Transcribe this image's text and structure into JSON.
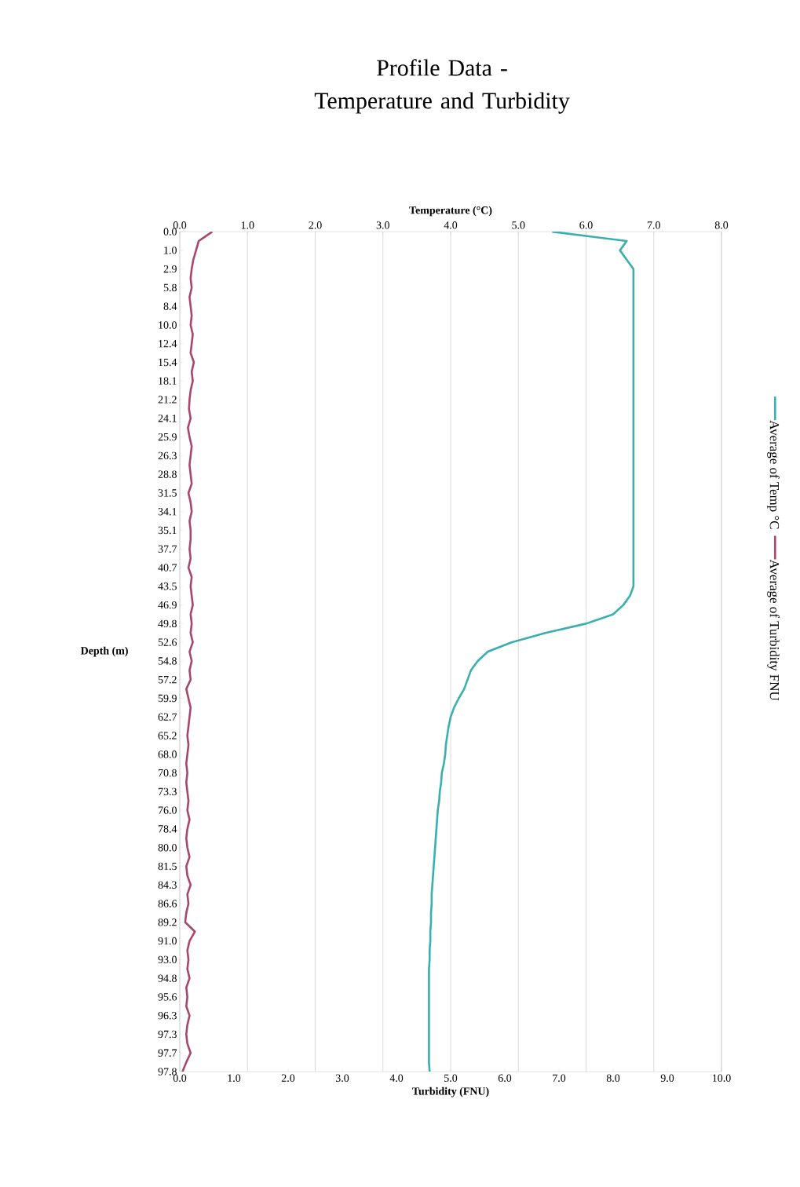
{
  "chart_data": {
    "type": "line",
    "orientation": "horizontal",
    "title": "Profile Data - Temperature and Turbidity",
    "xlabel": "Turbidity (FNU)",
    "x2label": "Temperature (°C)",
    "ylabel": "Depth (m)",
    "categories": [
      "0.0",
      null,
      "1.0",
      null,
      "2.9",
      null,
      "5.8",
      null,
      "8.4",
      null,
      "10.0",
      null,
      "12.4",
      null,
      "15.4",
      null,
      "18.1",
      null,
      "21.2",
      null,
      "24.1",
      null,
      "25.9",
      null,
      "26.3",
      null,
      "28.8",
      null,
      "31.5",
      null,
      "34.1",
      null,
      "35.1",
      null,
      "37.7",
      null,
      "40.7",
      null,
      "43.5",
      null,
      "46.9",
      null,
      "49.8",
      null,
      "52.6",
      null,
      "54.8",
      null,
      "57.2",
      null,
      "59.9",
      null,
      "62.7",
      null,
      "65.2",
      null,
      "68.0",
      null,
      "70.8",
      null,
      "73.3",
      null,
      "76.0",
      null,
      "78.4",
      null,
      "80.0",
      null,
      "81.5",
      null,
      "84.3",
      null,
      "86.6",
      null,
      "89.2",
      null,
      "91.0",
      null,
      "93.0",
      null,
      "94.8",
      null,
      "95.6",
      null,
      "96.3",
      null,
      "97.3",
      null,
      "97.7",
      null,
      "97.8"
    ],
    "series": [
      {
        "name": "Average of Temp °C",
        "color": "#3aafb0",
        "axis": "x2",
        "values": [
          5.5,
          6.6,
          6.5,
          6.6,
          6.7,
          6.7,
          6.7,
          6.7,
          6.7,
          6.7,
          6.7,
          6.7,
          6.7,
          6.7,
          6.7,
          6.7,
          6.7,
          6.7,
          6.7,
          6.7,
          6.7,
          6.7,
          6.7,
          6.7,
          6.7,
          6.7,
          6.7,
          6.7,
          6.7,
          6.7,
          6.7,
          6.7,
          6.7,
          6.7,
          6.7,
          6.7,
          6.7,
          6.7,
          6.7,
          6.65,
          6.55,
          6.4,
          6.0,
          5.4,
          4.9,
          4.55,
          4.4,
          4.3,
          4.25,
          4.2,
          4.12,
          4.05,
          4.0,
          3.97,
          3.95,
          3.93,
          3.92,
          3.9,
          3.87,
          3.86,
          3.84,
          3.83,
          3.81,
          3.8,
          3.79,
          3.78,
          3.77,
          3.76,
          3.75,
          3.74,
          3.73,
          3.72,
          3.72,
          3.71,
          3.71,
          3.7,
          3.7,
          3.69,
          3.69,
          3.68,
          3.68,
          3.68,
          3.68,
          3.68,
          3.68,
          3.68,
          3.68,
          3.68,
          3.68,
          3.68,
          3.69
        ]
      },
      {
        "name": "Average of Turbidity FNU",
        "color": "#a8476e",
        "values": [
          0.6,
          0.35,
          0.3,
          0.25,
          0.22,
          0.2,
          0.22,
          0.18,
          0.2,
          0.22,
          0.2,
          0.24,
          0.22,
          0.2,
          0.26,
          0.22,
          0.24,
          0.2,
          0.18,
          0.17,
          0.2,
          0.15,
          0.18,
          0.22,
          0.2,
          0.18,
          0.2,
          0.22,
          0.16,
          0.2,
          0.22,
          0.18,
          0.2,
          0.2,
          0.18,
          0.2,
          0.16,
          0.22,
          0.2,
          0.22,
          0.24,
          0.2,
          0.22,
          0.2,
          0.24,
          0.18,
          0.22,
          0.18,
          0.2,
          0.12,
          0.16,
          0.2,
          0.18,
          0.16,
          0.14,
          0.16,
          0.14,
          0.12,
          0.14,
          0.12,
          0.14,
          0.16,
          0.14,
          0.18,
          0.14,
          0.12,
          0.14,
          0.18,
          0.12,
          0.14,
          0.2,
          0.14,
          0.16,
          0.12,
          0.1,
          0.28,
          0.18,
          0.14,
          0.16,
          0.14,
          0.18,
          0.12,
          0.14,
          0.12,
          0.18,
          0.14,
          0.12,
          0.14,
          0.2,
          0.12,
          0.05
        ]
      }
    ],
    "xlim": [
      0,
      10
    ],
    "xticks": [
      {
        "value": 0,
        "label": "0.0"
      },
      {
        "value": 1,
        "label": "1.0"
      },
      {
        "value": 2,
        "label": "2.0"
      },
      {
        "value": 3,
        "label": "3.0"
      },
      {
        "value": 4,
        "label": "4.0"
      },
      {
        "value": 5,
        "label": "5.0"
      },
      {
        "value": 6,
        "label": "6.0"
      },
      {
        "value": 7,
        "label": "7.0"
      },
      {
        "value": 8,
        "label": "8.0"
      },
      {
        "value": 9,
        "label": "9.0"
      },
      {
        "value": 10,
        "label": "10.0"
      }
    ],
    "x2lim": [
      0,
      8
    ],
    "x2ticks": [
      {
        "value": 0,
        "label": "0.0"
      },
      {
        "value": 1,
        "label": "1.0"
      },
      {
        "value": 2,
        "label": "2.0"
      },
      {
        "value": 3,
        "label": "3.0"
      },
      {
        "value": 4,
        "label": "4.0"
      },
      {
        "value": 5,
        "label": "5.0"
      },
      {
        "value": 6,
        "label": "6.0"
      },
      {
        "value": 7,
        "label": "7.0"
      },
      {
        "value": 8,
        "label": "8.0"
      }
    ],
    "grid": "x",
    "legend": "right",
    "marker": "none",
    "line_style": "solid"
  }
}
